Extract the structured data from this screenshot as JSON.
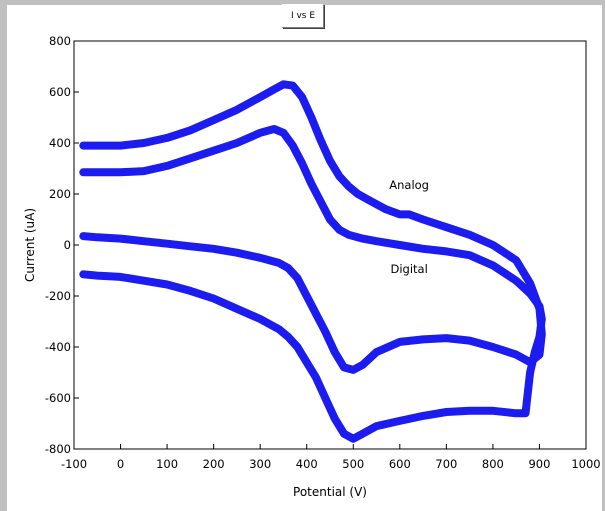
{
  "window": {
    "title_tab": "I vs E"
  },
  "chart_data": {
    "type": "line",
    "title": "I vs E",
    "xlabel": "Potential (V)",
    "ylabel": "Current (uA)",
    "xlim": [
      -100,
      1000
    ],
    "ylim": [
      -800,
      800
    ],
    "xticks": [
      -100,
      0,
      100,
      200,
      300,
      400,
      500,
      600,
      700,
      800,
      900,
      1000
    ],
    "yticks": [
      -800,
      -600,
      -400,
      -200,
      0,
      200,
      400,
      600,
      800
    ],
    "grid": false,
    "color": "#1c1cf0",
    "annotations": [
      {
        "text": "Analog",
        "x": 620,
        "y": 220
      },
      {
        "text": "Digital",
        "x": 620,
        "y": -110
      }
    ],
    "series": [
      {
        "x": [
          -80,
          0,
          50,
          100,
          150,
          200,
          250,
          300,
          330,
          350,
          370,
          390,
          410,
          430,
          450,
          470,
          490,
          510,
          540,
          570,
          600,
          620,
          650,
          700,
          750,
          800,
          850,
          880,
          900,
          905,
          900,
          880,
          850,
          800,
          750,
          700,
          650,
          600,
          550,
          520,
          500,
          480,
          460,
          440,
          420,
          400,
          380,
          360,
          340,
          300,
          250,
          200,
          150,
          100,
          50,
          0,
          -50,
          -80
        ],
        "y": [
          390,
          390,
          400,
          420,
          450,
          490,
          530,
          580,
          610,
          630,
          625,
          580,
          500,
          410,
          330,
          270,
          230,
          200,
          170,
          140,
          120,
          120,
          100,
          70,
          40,
          0,
          -60,
          -150,
          -250,
          -350,
          -430,
          -460,
          -430,
          -400,
          -375,
          -365,
          -370,
          -380,
          -420,
          -470,
          -490,
          -480,
          -420,
          -340,
          -270,
          -200,
          -130,
          -90,
          -70,
          -50,
          -30,
          -15,
          -5,
          5,
          15,
          25,
          30,
          35
        ]
      },
      {
        "x": [
          -80,
          0,
          50,
          100,
          150,
          200,
          250,
          300,
          330,
          350,
          370,
          390,
          410,
          430,
          450,
          470,
          490,
          520,
          550,
          600,
          650,
          700,
          750,
          800,
          850,
          880,
          900,
          905,
          900,
          890,
          880,
          870,
          850,
          800,
          750,
          700,
          650,
          600,
          550,
          520,
          500,
          480,
          460,
          440,
          420,
          400,
          380,
          360,
          340,
          320,
          300,
          250,
          200,
          150,
          100,
          50,
          0,
          -50,
          -80
        ],
        "y": [
          285,
          285,
          290,
          310,
          340,
          370,
          400,
          440,
          455,
          440,
          390,
          320,
          240,
          170,
          100,
          60,
          40,
          25,
          15,
          0,
          -15,
          -25,
          -40,
          -80,
          -140,
          -190,
          -240,
          -290,
          -360,
          -420,
          -500,
          -660,
          -660,
          -650,
          -650,
          -655,
          -670,
          -690,
          -710,
          -740,
          -760,
          -740,
          -680,
          -600,
          -520,
          -460,
          -400,
          -360,
          -330,
          -310,
          -290,
          -250,
          -210,
          -180,
          -155,
          -140,
          -125,
          -120,
          -115
        ]
      }
    ]
  }
}
